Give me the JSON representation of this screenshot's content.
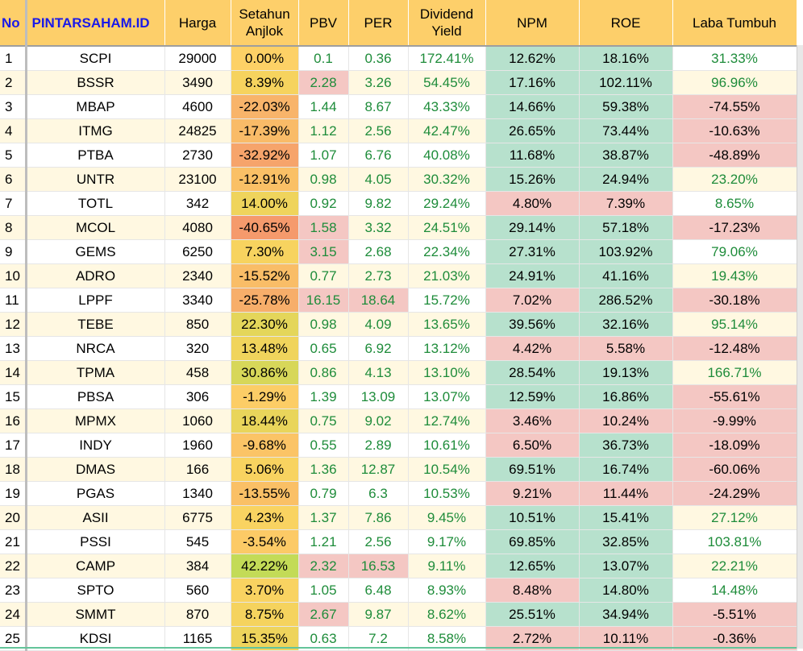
{
  "colors": {
    "header_bg": "#fdcf6a",
    "brand_text": "#1a1ae8",
    "good_bg": "#b7e1cd",
    "bad_bg": "#f4c7c3",
    "positive_text": "#1e8c3a",
    "band_bg": "#fff8e1"
  },
  "header": {
    "no": "No",
    "brand": "PINTARSAHAM.ID",
    "harga": "Harga",
    "setahun_line1": "Setahun",
    "setahun_line2": "Anjlok",
    "pbv": "PBV",
    "per": "PER",
    "dividend_line1": "Dividend",
    "dividend_line2": "Yield",
    "npm": "NPM",
    "roe": "ROE",
    "laba": "Laba Tumbuh"
  },
  "rows": [
    {
      "no": "1",
      "ticker": "SCPI",
      "harga": "29000",
      "setahun": "0.00%",
      "setahun_bg": "#fdd166",
      "pbv": "0.1",
      "pbv_bad": false,
      "per": "0.36",
      "per_bad": false,
      "dy": "172.41%",
      "npm": "12.62%",
      "npm_good": true,
      "roe": "18.16%",
      "roe_good": true,
      "laba": "31.33%",
      "laba_pos": true
    },
    {
      "no": "2",
      "ticker": "BSSR",
      "harga": "3490",
      "setahun": "8.39%",
      "setahun_bg": "#f6d35e",
      "pbv": "2.28",
      "pbv_bad": true,
      "per": "3.26",
      "per_bad": false,
      "dy": "54.45%",
      "npm": "17.16%",
      "npm_good": true,
      "roe": "102.11%",
      "roe_good": true,
      "laba": "96.96%",
      "laba_pos": true
    },
    {
      "no": "3",
      "ticker": "MBAP",
      "harga": "4600",
      "setahun": "-22.03%",
      "setahun_bg": "#f8b46a",
      "pbv": "1.44",
      "pbv_bad": false,
      "per": "8.67",
      "per_bad": false,
      "dy": "43.33%",
      "npm": "14.66%",
      "npm_good": true,
      "roe": "59.38%",
      "roe_good": true,
      "laba": "-74.55%",
      "laba_pos": false
    },
    {
      "no": "4",
      "ticker": "ITMG",
      "harga": "24825",
      "setahun": "-17.39%",
      "setahun_bg": "#f9bb68",
      "pbv": "1.12",
      "pbv_bad": false,
      "per": "2.56",
      "per_bad": false,
      "dy": "42.47%",
      "npm": "26.65%",
      "npm_good": true,
      "roe": "73.44%",
      "roe_good": true,
      "laba": "-10.63%",
      "laba_pos": false
    },
    {
      "no": "5",
      "ticker": "PTBA",
      "harga": "2730",
      "setahun": "-32.92%",
      "setahun_bg": "#f6a46b",
      "pbv": "1.07",
      "pbv_bad": false,
      "per": "6.76",
      "per_bad": false,
      "dy": "40.08%",
      "npm": "11.68%",
      "npm_good": true,
      "roe": "38.87%",
      "roe_good": true,
      "laba": "-48.89%",
      "laba_pos": false
    },
    {
      "no": "6",
      "ticker": "UNTR",
      "harga": "23100",
      "setahun": "-12.91%",
      "setahun_bg": "#fac066",
      "pbv": "0.98",
      "pbv_bad": false,
      "per": "4.05",
      "per_bad": false,
      "dy": "30.32%",
      "npm": "15.26%",
      "npm_good": true,
      "roe": "24.94%",
      "roe_good": true,
      "laba": "23.20%",
      "laba_pos": true
    },
    {
      "no": "7",
      "ticker": "TOTL",
      "harga": "342",
      "setahun": "14.00%",
      "setahun_bg": "#efd45c",
      "pbv": "0.92",
      "pbv_bad": false,
      "per": "9.82",
      "per_bad": false,
      "dy": "29.24%",
      "npm": "4.80%",
      "npm_good": false,
      "roe": "7.39%",
      "roe_good": false,
      "laba": "8.65%",
      "laba_pos": true
    },
    {
      "no": "8",
      "ticker": "MCOL",
      "harga": "4080",
      "setahun": "-40.65%",
      "setahun_bg": "#f59a6c",
      "pbv": "1.58",
      "pbv_bad": true,
      "per": "3.32",
      "per_bad": false,
      "dy": "24.51%",
      "npm": "29.14%",
      "npm_good": true,
      "roe": "57.18%",
      "roe_good": true,
      "laba": "-17.23%",
      "laba_pos": false
    },
    {
      "no": "9",
      "ticker": "GEMS",
      "harga": "6250",
      "setahun": "7.30%",
      "setahun_bg": "#f7d35f",
      "pbv": "3.15",
      "pbv_bad": true,
      "per": "2.68",
      "per_bad": false,
      "dy": "22.34%",
      "npm": "27.31%",
      "npm_good": true,
      "roe": "103.92%",
      "roe_good": true,
      "laba": "79.06%",
      "laba_pos": true
    },
    {
      "no": "10",
      "ticker": "ADRO",
      "harga": "2340",
      "setahun": "-15.52%",
      "setahun_bg": "#f9bd67",
      "pbv": "0.77",
      "pbv_bad": false,
      "per": "2.73",
      "per_bad": false,
      "dy": "21.03%",
      "npm": "24.91%",
      "npm_good": true,
      "roe": "41.16%",
      "roe_good": true,
      "laba": "19.43%",
      "laba_pos": true
    },
    {
      "no": "11",
      "ticker": "LPPF",
      "harga": "3340",
      "setahun": "-25.78%",
      "setahun_bg": "#f7ae6a",
      "pbv": "16.15",
      "pbv_bad": true,
      "per": "18.64",
      "per_bad": true,
      "dy": "15.72%",
      "npm": "7.02%",
      "npm_good": false,
      "roe": "286.52%",
      "roe_good": true,
      "laba": "-30.18%",
      "laba_pos": false
    },
    {
      "no": "12",
      "ticker": "TEBE",
      "harga": "850",
      "setahun": "22.30%",
      "setahun_bg": "#e4d65a",
      "pbv": "0.98",
      "pbv_bad": false,
      "per": "4.09",
      "per_bad": false,
      "dy": "13.65%",
      "npm": "39.56%",
      "npm_good": true,
      "roe": "32.16%",
      "roe_good": true,
      "laba": "95.14%",
      "laba_pos": true
    },
    {
      "no": "13",
      "ticker": "NRCA",
      "harga": "320",
      "setahun": "13.48%",
      "setahun_bg": "#f0d45c",
      "pbv": "0.65",
      "pbv_bad": false,
      "per": "6.92",
      "per_bad": false,
      "dy": "13.12%",
      "npm": "4.42%",
      "npm_good": false,
      "roe": "5.58%",
      "roe_good": false,
      "laba": "-12.48%",
      "laba_pos": false
    },
    {
      "no": "14",
      "ticker": "TPMA",
      "harga": "458",
      "setahun": "30.86%",
      "setahun_bg": "#d7d759",
      "pbv": "0.86",
      "pbv_bad": false,
      "per": "4.13",
      "per_bad": false,
      "dy": "13.10%",
      "npm": "28.54%",
      "npm_good": true,
      "roe": "19.13%",
      "roe_good": true,
      "laba": "166.71%",
      "laba_pos": true
    },
    {
      "no": "15",
      "ticker": "PBSA",
      "harga": "306",
      "setahun": "-1.29%",
      "setahun_bg": "#fccd66",
      "pbv": "1.39",
      "pbv_bad": false,
      "per": "13.09",
      "per_bad": false,
      "dy": "13.07%",
      "npm": "12.59%",
      "npm_good": true,
      "roe": "16.86%",
      "roe_good": true,
      "laba": "-55.61%",
      "laba_pos": false
    },
    {
      "no": "16",
      "ticker": "MPMX",
      "harga": "1060",
      "setahun": "18.44%",
      "setahun_bg": "#e9d55b",
      "pbv": "0.75",
      "pbv_bad": false,
      "per": "9.02",
      "per_bad": false,
      "dy": "12.74%",
      "npm": "3.46%",
      "npm_good": false,
      "roe": "10.24%",
      "roe_good": false,
      "laba": "-9.99%",
      "laba_pos": false
    },
    {
      "no": "17",
      "ticker": "INDY",
      "harga": "1960",
      "setahun": "-9.68%",
      "setahun_bg": "#fbc466",
      "pbv": "0.55",
      "pbv_bad": false,
      "per": "2.89",
      "per_bad": false,
      "dy": "10.61%",
      "npm": "6.50%",
      "npm_good": false,
      "roe": "36.73%",
      "roe_good": true,
      "laba": "-18.09%",
      "laba_pos": false
    },
    {
      "no": "18",
      "ticker": "DMAS",
      "harga": "166",
      "setahun": "5.06%",
      "setahun_bg": "#f8d360",
      "pbv": "1.36",
      "pbv_bad": false,
      "per": "12.87",
      "per_bad": false,
      "dy": "10.54%",
      "npm": "69.51%",
      "npm_good": true,
      "roe": "16.74%",
      "roe_good": true,
      "laba": "-60.06%",
      "laba_pos": false
    },
    {
      "no": "19",
      "ticker": "PGAS",
      "harga": "1340",
      "setahun": "-13.55%",
      "setahun_bg": "#fac066",
      "pbv": "0.79",
      "pbv_bad": false,
      "per": "6.3",
      "per_bad": false,
      "dy": "10.53%",
      "npm": "9.21%",
      "npm_good": false,
      "roe": "11.44%",
      "roe_good": false,
      "laba": "-24.29%",
      "laba_pos": false
    },
    {
      "no": "20",
      "ticker": "ASII",
      "harga": "6775",
      "setahun": "4.23%",
      "setahun_bg": "#f9d361",
      "pbv": "1.37",
      "pbv_bad": false,
      "per": "7.86",
      "per_bad": false,
      "dy": "9.45%",
      "npm": "10.51%",
      "npm_good": true,
      "roe": "15.41%",
      "roe_good": true,
      "laba": "27.12%",
      "laba_pos": true
    },
    {
      "no": "21",
      "ticker": "PSSI",
      "harga": "545",
      "setahun": "-3.54%",
      "setahun_bg": "#fcca66",
      "pbv": "1.21",
      "pbv_bad": false,
      "per": "2.56",
      "per_bad": false,
      "dy": "9.17%",
      "npm": "69.85%",
      "npm_good": true,
      "roe": "32.85%",
      "roe_good": true,
      "laba": "103.81%",
      "laba_pos": true
    },
    {
      "no": "22",
      "ticker": "CAMP",
      "harga": "384",
      "setahun": "42.22%",
      "setahun_bg": "#c3db57",
      "pbv": "2.32",
      "pbv_bad": true,
      "per": "16.53",
      "per_bad": true,
      "dy": "9.11%",
      "npm": "12.65%",
      "npm_good": true,
      "roe": "13.07%",
      "roe_good": true,
      "laba": "22.21%",
      "laba_pos": true
    },
    {
      "no": "23",
      "ticker": "SPTO",
      "harga": "560",
      "setahun": "3.70%",
      "setahun_bg": "#f9d361",
      "pbv": "1.05",
      "pbv_bad": false,
      "per": "6.48",
      "per_bad": false,
      "dy": "8.93%",
      "npm": "8.48%",
      "npm_good": false,
      "roe": "14.80%",
      "roe_good": true,
      "laba": "14.48%",
      "laba_pos": true
    },
    {
      "no": "24",
      "ticker": "SMMT",
      "harga": "870",
      "setahun": "8.75%",
      "setahun_bg": "#f5d35e",
      "pbv": "2.67",
      "pbv_bad": true,
      "per": "9.87",
      "per_bad": false,
      "dy": "8.62%",
      "npm": "25.51%",
      "npm_good": true,
      "roe": "34.94%",
      "roe_good": true,
      "laba": "-5.51%",
      "laba_pos": false
    },
    {
      "no": "25",
      "ticker": "KDSI",
      "harga": "1165",
      "setahun": "15.35%",
      "setahun_bg": "#eed45c",
      "pbv": "0.63",
      "pbv_bad": false,
      "per": "7.2",
      "per_bad": false,
      "dy": "8.58%",
      "npm": "2.72%",
      "npm_good": false,
      "roe": "10.11%",
      "roe_good": false,
      "laba": "-0.36%",
      "laba_pos": false
    }
  ]
}
